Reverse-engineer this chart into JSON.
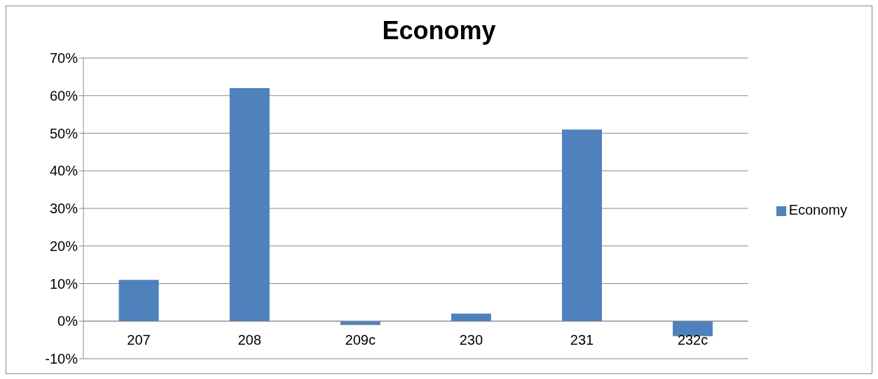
{
  "chart_data": {
    "type": "bar",
    "title": "Economy",
    "categories": [
      "207",
      "208",
      "209c",
      "230",
      "231",
      "232c"
    ],
    "series": [
      {
        "name": "Economy",
        "color": "#4f81bd",
        "values": [
          11,
          62,
          -1,
          2,
          51,
          -4
        ]
      }
    ],
    "ylim": [
      -10,
      70
    ],
    "yticks": [
      {
        "value": -10,
        "label": "-10%"
      },
      {
        "value": 0,
        "label": "0%"
      },
      {
        "value": 10,
        "label": "10%"
      },
      {
        "value": 20,
        "label": "20%"
      },
      {
        "value": 30,
        "label": "30%"
      },
      {
        "value": 40,
        "label": "40%"
      },
      {
        "value": 50,
        "label": "50%"
      },
      {
        "value": 60,
        "label": "60%"
      },
      {
        "value": 70,
        "label": "70%"
      }
    ],
    "grid": "y",
    "legend": "right"
  }
}
